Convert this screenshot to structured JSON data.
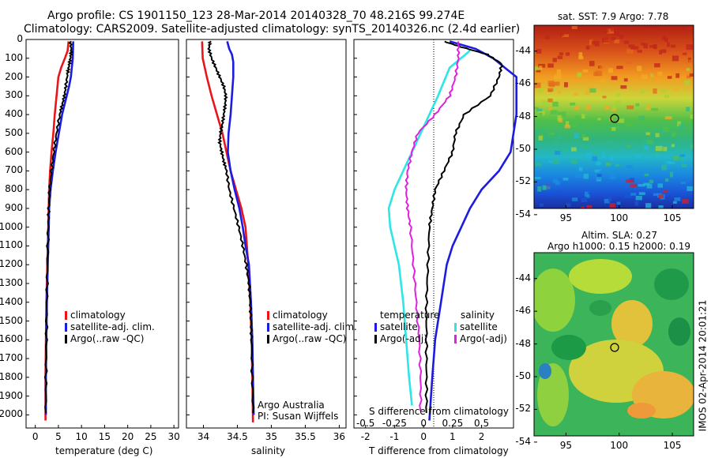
{
  "header": {
    "line1": "Argo profile: CS 1901150_123 28-Mar-2014 20140328_70 48.216S 99.274E",
    "line2": "Climatology: CARS2009. Satellite-adjusted climatology: synTS_20140326.nc (2.4d earlier)"
  },
  "colors": {
    "climatology": "#e8161a",
    "satellite": "#1c1ce0",
    "argo": "#000000",
    "sal_satellite": "#2ee6e6",
    "sal_argo": "#e020e0"
  },
  "chart_data": [
    {
      "type": "line",
      "xlabel": "temperature (deg C)",
      "ylabel": "",
      "xticks": [
        "0",
        "5",
        "10",
        "15",
        "20",
        "25",
        "30"
      ],
      "yticks": [
        "0",
        "100",
        "200",
        "300",
        "400",
        "500",
        "600",
        "700",
        "800",
        "900",
        "1000",
        "1100",
        "1200",
        "1300",
        "1400",
        "1500",
        "1600",
        "1700",
        "1800",
        "1900",
        "2000"
      ],
      "xlim": [
        -2,
        31
      ],
      "ylim": [
        2070,
        0
      ],
      "legend": [
        "climatology",
        "satellite-adj. clim.",
        "Argo(..raw -QC)"
      ],
      "series": [
        {
          "name": "climatology",
          "color": "#e8161a",
          "points": [
            [
              7.2,
              10
            ],
            [
              7.0,
              60
            ],
            [
              6.4,
              100
            ],
            [
              5.6,
              150
            ],
            [
              5.0,
              200
            ],
            [
              4.6,
              300
            ],
            [
              4.2,
              400
            ],
            [
              3.9,
              500
            ],
            [
              3.5,
              600
            ],
            [
              3.2,
              700
            ],
            [
              3.0,
              800
            ],
            [
              2.8,
              1000
            ],
            [
              2.6,
              1200
            ],
            [
              2.4,
              1400
            ],
            [
              2.3,
              1600
            ],
            [
              2.2,
              1800
            ],
            [
              2.2,
              2030
            ]
          ]
        },
        {
          "name": "satellite-adj. clim.",
          "color": "#1c1ce0",
          "points": [
            [
              8.2,
              10
            ],
            [
              8.1,
              100
            ],
            [
              7.9,
              150
            ],
            [
              7.7,
              200
            ],
            [
              7.3,
              250
            ],
            [
              6.8,
              300
            ],
            [
              6.3,
              350
            ],
            [
              5.8,
              400
            ],
            [
              5.1,
              500
            ],
            [
              4.4,
              600
            ],
            [
              3.8,
              700
            ],
            [
              3.3,
              800
            ],
            [
              3.0,
              900
            ],
            [
              2.9,
              1000
            ],
            [
              2.7,
              1200
            ],
            [
              2.5,
              1400
            ],
            [
              2.4,
              1600
            ],
            [
              2.3,
              1800
            ],
            [
              2.3,
              2000
            ]
          ]
        },
        {
          "name": "Argo(..raw -QC)",
          "color": "#000000",
          "points": [
            [
              7.6,
              10
            ],
            [
              7.8,
              60
            ],
            [
              7.6,
              100
            ],
            [
              7.3,
              140
            ],
            [
              7.0,
              180
            ],
            [
              6.6,
              250
            ],
            [
              6.3,
              300
            ],
            [
              5.8,
              350
            ],
            [
              5.3,
              400
            ],
            [
              4.6,
              500
            ],
            [
              4.0,
              600
            ],
            [
              3.5,
              700
            ],
            [
              3.1,
              800
            ],
            [
              2.9,
              900
            ],
            [
              2.8,
              1000
            ],
            [
              2.6,
              1200
            ],
            [
              2.5,
              1400
            ],
            [
              2.4,
              1600
            ],
            [
              2.3,
              1800
            ],
            [
              2.3,
              1990
            ]
          ]
        }
      ]
    },
    {
      "type": "line",
      "xlabel": "salinity",
      "ylabel": "",
      "xticks": [
        "34",
        "34.5",
        "35",
        "35.5",
        "36"
      ],
      "xlim": [
        33.75,
        36.1
      ],
      "ylim": [
        2070,
        0
      ],
      "legend": [
        "climatology",
        "satellite-adj. clim.",
        "Argo(..raw -QC)"
      ],
      "annotation": [
        "Argo Australia",
        "PI: Susan Wijffels"
      ],
      "series": [
        {
          "name": "climatology",
          "color": "#e8161a",
          "points": [
            [
              33.98,
              10
            ],
            [
              33.99,
              100
            ],
            [
              34.05,
              200
            ],
            [
              34.12,
              300
            ],
            [
              34.2,
              400
            ],
            [
              34.28,
              500
            ],
            [
              34.34,
              600
            ],
            [
              34.4,
              700
            ],
            [
              34.48,
              800
            ],
            [
              34.56,
              900
            ],
            [
              34.62,
              1000
            ],
            [
              34.66,
              1200
            ],
            [
              34.69,
              1400
            ],
            [
              34.71,
              1600
            ],
            [
              34.72,
              1800
            ],
            [
              34.73,
              2040
            ]
          ]
        },
        {
          "name": "satellite-adj. clim.",
          "color": "#1c1ce0",
          "points": [
            [
              34.35,
              10
            ],
            [
              34.38,
              50
            ],
            [
              34.42,
              80
            ],
            [
              34.44,
              120
            ],
            [
              34.44,
              200
            ],
            [
              34.42,
              300
            ],
            [
              34.4,
              400
            ],
            [
              34.37,
              500
            ],
            [
              34.36,
              600
            ],
            [
              34.4,
              700
            ],
            [
              34.46,
              800
            ],
            [
              34.53,
              900
            ],
            [
              34.58,
              1000
            ],
            [
              34.62,
              1100
            ],
            [
              34.67,
              1200
            ],
            [
              34.7,
              1400
            ],
            [
              34.72,
              1600
            ],
            [
              34.73,
              1800
            ],
            [
              34.74,
              2000
            ]
          ]
        },
        {
          "name": "Argo(..raw -QC)",
          "color": "#000000",
          "points": [
            [
              34.1,
              10
            ],
            [
              34.08,
              50
            ],
            [
              34.12,
              100
            ],
            [
              34.18,
              150
            ],
            [
              34.24,
              200
            ],
            [
              34.3,
              250
            ],
            [
              34.33,
              300
            ],
            [
              34.32,
              350
            ],
            [
              34.3,
              400
            ],
            [
              34.28,
              450
            ],
            [
              34.25,
              500
            ],
            [
              34.24,
              550
            ],
            [
              34.27,
              600
            ],
            [
              34.3,
              650
            ],
            [
              34.34,
              700
            ],
            [
              34.38,
              800
            ],
            [
              34.45,
              900
            ],
            [
              34.52,
              1000
            ],
            [
              34.58,
              1100
            ],
            [
              34.63,
              1200
            ],
            [
              34.67,
              1300
            ],
            [
              34.69,
              1400
            ],
            [
              34.7,
              1500
            ],
            [
              34.71,
              1600
            ],
            [
              34.72,
              1800
            ],
            [
              34.73,
              1990
            ]
          ]
        }
      ]
    },
    {
      "type": "line",
      "xlabel": "T difference from climatology",
      "ylabel": "",
      "xticks": [
        "-2",
        "-1",
        "0",
        "1",
        "2"
      ],
      "secondary_xlabel": "S difference from climatology",
      "secondary_xticks": [
        "-0.5",
        "-0.25",
        "0",
        "0.25",
        "0.5"
      ],
      "xlim": [
        -2.4,
        3.1
      ],
      "ylim": [
        2070,
        0
      ],
      "legend_titles": [
        "temperature",
        "salinity"
      ],
      "legend": [
        "satellite",
        "Argo(-adj)",
        "satellite",
        "Argo(-adj)"
      ],
      "series": [
        {
          "name": "satellite",
          "group": "temperature",
          "color": "#1c1ce0",
          "points": [
            [
              0.9,
              10
            ],
            [
              1.8,
              50
            ],
            [
              2.4,
              100
            ],
            [
              2.8,
              150
            ],
            [
              3.2,
              200
            ],
            [
              3.2,
              400
            ],
            [
              3.0,
              600
            ],
            [
              2.6,
              700
            ],
            [
              2.0,
              800
            ],
            [
              1.6,
              900
            ],
            [
              1.3,
              1000
            ],
            [
              1.0,
              1100
            ],
            [
              0.8,
              1200
            ],
            [
              0.6,
              1400
            ],
            [
              0.4,
              1600
            ],
            [
              0.3,
              1800
            ],
            [
              0.2,
              2030
            ]
          ]
        },
        {
          "name": "Argo(-adj)",
          "group": "temperature",
          "color": "#000000",
          "points": [
            [
              0.7,
              10
            ],
            [
              1.3,
              40
            ],
            [
              2.2,
              80
            ],
            [
              2.7,
              130
            ],
            [
              2.6,
              200
            ],
            [
              2.3,
              300
            ],
            [
              1.4,
              400
            ],
            [
              1.1,
              500
            ],
            [
              1.0,
              600
            ],
            [
              0.7,
              700
            ],
            [
              0.4,
              800
            ],
            [
              0.3,
              900
            ],
            [
              0.2,
              1000
            ],
            [
              0.15,
              1200
            ],
            [
              0.1,
              1400
            ],
            [
              0.1,
              1600
            ],
            [
              0.1,
              1800
            ],
            [
              0.1,
              1990
            ]
          ]
        },
        {
          "name": "satellite",
          "group": "salinity",
          "color": "#2ee6e6",
          "points": [
            [
              1.6,
              60
            ],
            [
              0.9,
              150
            ],
            [
              0.5,
              300
            ],
            [
              0.2,
              400
            ],
            [
              -0.1,
              500
            ],
            [
              -0.4,
              600
            ],
            [
              -0.7,
              700
            ],
            [
              -1.0,
              800
            ],
            [
              -1.2,
              900
            ],
            [
              -1.15,
              1000
            ],
            [
              -1.0,
              1100
            ],
            [
              -0.85,
              1200
            ],
            [
              -0.7,
              1400
            ],
            [
              -0.6,
              1600
            ],
            [
              -0.5,
              1800
            ],
            [
              -0.4,
              1950
            ]
          ]
        },
        {
          "name": "Argo(-adj)",
          "group": "salinity",
          "color": "#e020e0",
          "points": [
            [
              1.2,
              10
            ],
            [
              1.2,
              100
            ],
            [
              1.1,
              200
            ],
            [
              0.9,
              300
            ],
            [
              0.4,
              400
            ],
            [
              -0.2,
              500
            ],
            [
              -0.4,
              600
            ],
            [
              -0.55,
              700
            ],
            [
              -0.6,
              800
            ],
            [
              -0.55,
              900
            ],
            [
              -0.45,
              1000
            ],
            [
              -0.35,
              1200
            ],
            [
              -0.25,
              1400
            ],
            [
              -0.15,
              1600
            ],
            [
              -0.1,
              1800
            ],
            [
              -0.1,
              1980
            ]
          ]
        }
      ]
    }
  ],
  "maps": [
    {
      "title": "sat. SST: 7.9 Argo: 7.78",
      "yticks": [
        "-44",
        "-46",
        "-48",
        "-50",
        "-52",
        "-54"
      ],
      "xticks": [
        "95",
        "100",
        "105"
      ],
      "marker": {
        "lon": 99.274,
        "lat": -48.216
      }
    },
    {
      "title_line1": "Altim. SLA: 0.27",
      "title_line2": "Argo h1000: 0.15 h2000: 0.19",
      "yticks": [
        "-44",
        "-46",
        "-48",
        "-50",
        "-52",
        "-54"
      ],
      "xticks": [
        "95",
        "100",
        "105"
      ],
      "marker": {
        "lon": 99.274,
        "lat": -48.216
      },
      "side_label": "IMOS 02-Apr-2014 20:01:21"
    }
  ]
}
